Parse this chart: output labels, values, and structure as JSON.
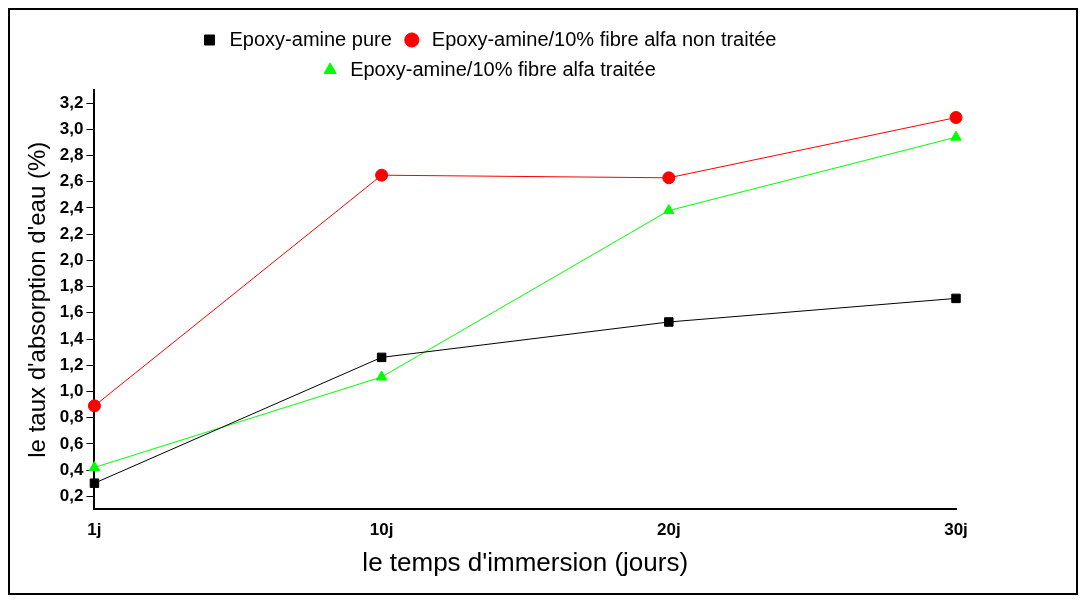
{
  "chart_data": {
    "type": "line",
    "xlabel": "le temps d'immersion (jours)",
    "ylabel": "le taux d'absorption d'eau (%)",
    "categories": [
      "1j",
      "10j",
      "20j",
      "30j"
    ],
    "series": [
      {
        "name": "Epoxy-amine pure",
        "color": "#000000",
        "marker": "square",
        "values": [
          0.3,
          1.26,
          1.53,
          1.71
        ]
      },
      {
        "name": "Epoxy-amine/10% fibre alfa non traitée",
        "color": "#ff0000",
        "marker": "circle",
        "values": [
          0.89,
          2.65,
          2.63,
          3.09
        ]
      },
      {
        "name": "Epoxy-amine/10% fibre alfa traitée",
        "color": "#00ff00",
        "marker": "triangle",
        "values": [
          0.42,
          1.11,
          2.38,
          2.94
        ]
      }
    ],
    "ylim": [
      0.1,
      3.3
    ],
    "yticks": [
      {
        "value": 0.2,
        "label": "0,2"
      },
      {
        "value": 0.4,
        "label": "0,4"
      },
      {
        "value": 0.6,
        "label": "0,6"
      },
      {
        "value": 0.8,
        "label": "0,8"
      },
      {
        "value": 1.0,
        "label": "1,0"
      },
      {
        "value": 1.2,
        "label": "1,2"
      },
      {
        "value": 1.4,
        "label": "1,4"
      },
      {
        "value": 1.6,
        "label": "1,6"
      },
      {
        "value": 1.8,
        "label": "1,8"
      },
      {
        "value": 2.0,
        "label": "2,0"
      },
      {
        "value": 2.2,
        "label": "2,2"
      },
      {
        "value": 2.4,
        "label": "2,4"
      },
      {
        "value": 2.6,
        "label": "2,6"
      },
      {
        "value": 2.8,
        "label": "2,8"
      },
      {
        "value": 3.0,
        "label": "3,0"
      },
      {
        "value": 3.2,
        "label": "3,2"
      }
    ],
    "grid": false,
    "legend": "top",
    "line_style": "solid"
  }
}
